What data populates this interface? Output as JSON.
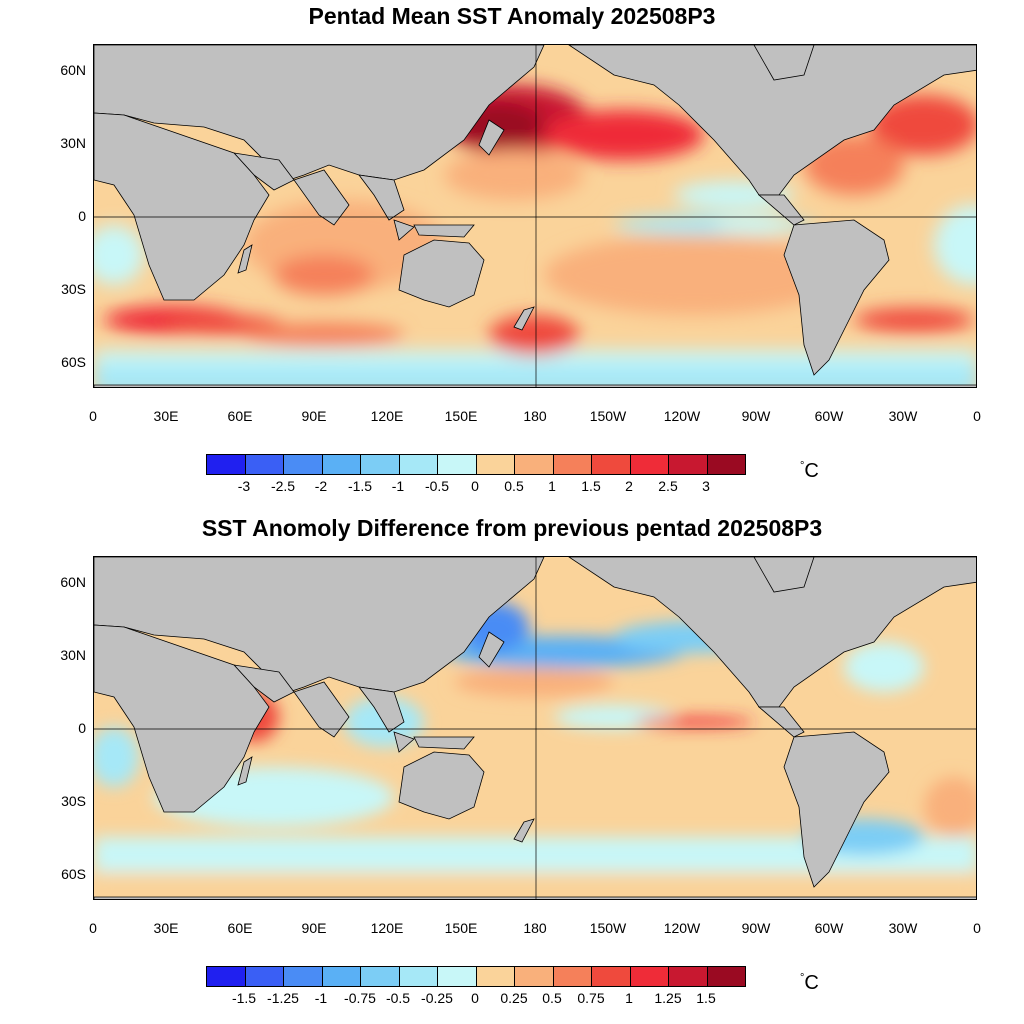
{
  "panels": [
    {
      "title": "Pentad Mean SST Anomaly 202508P3",
      "unit_symbol": "°",
      "unit_letter": "C",
      "colorbar_colors": [
        "#2020f0",
        "#3a5ff5",
        "#4a8cf5",
        "#5ab0f5",
        "#7ccdf5",
        "#a6e8f7",
        "#c8f7f8",
        "#fad39a",
        "#f9b07b",
        "#f5805a",
        "#ef4a3d",
        "#ef2c38",
        "#c81830",
        "#9a0a22"
      ],
      "colorbar_labels": [
        "-3",
        "-2.5",
        "-2",
        "-1.5",
        "-1",
        "-0.5",
        "0",
        "0.5",
        "1",
        "1.5",
        "2",
        "2.5",
        "3"
      ],
      "map": {
        "x_ticks": [
          "0",
          "30E",
          "60E",
          "90E",
          "120E",
          "150E",
          "180",
          "150W",
          "120W",
          "90W",
          "60W",
          "30W",
          "0"
        ],
        "y_ticks": [
          "60N",
          "30N",
          "0",
          "30S",
          "60S"
        ],
        "y_tick_values": [
          60,
          30,
          0,
          -30,
          -60
        ],
        "lat_range": [
          -70,
          70
        ],
        "lon_range": [
          0,
          360
        ]
      }
    },
    {
      "title": "SST Anomoly Difference from previous pentad 202508P3",
      "unit_symbol": "°",
      "unit_letter": "C",
      "colorbar_colors": [
        "#2020f0",
        "#3a5ff5",
        "#4a8cf5",
        "#5ab0f5",
        "#7ccdf5",
        "#a6e8f7",
        "#c8f7f8",
        "#fad39a",
        "#f9b07b",
        "#f5805a",
        "#ef4a3d",
        "#ef2c38",
        "#c81830",
        "#9a0a22"
      ],
      "colorbar_labels": [
        "-1.5",
        "-1.25",
        "-1",
        "-0.75",
        "-0.5",
        "-0.25",
        "0",
        "0.25",
        "0.5",
        "0.75",
        "1",
        "1.25",
        "1.5"
      ],
      "map": {
        "x_ticks": [
          "0",
          "30E",
          "60E",
          "90E",
          "120E",
          "150E",
          "180",
          "150W",
          "120W",
          "90W",
          "60W",
          "30W",
          "0"
        ],
        "y_ticks": [
          "60N",
          "30N",
          "0",
          "30S",
          "60S"
        ],
        "y_tick_values": [
          60,
          30,
          0,
          -30,
          -60
        ],
        "lat_range": [
          -70,
          70
        ],
        "lon_range": [
          0,
          360
        ]
      }
    }
  ]
}
